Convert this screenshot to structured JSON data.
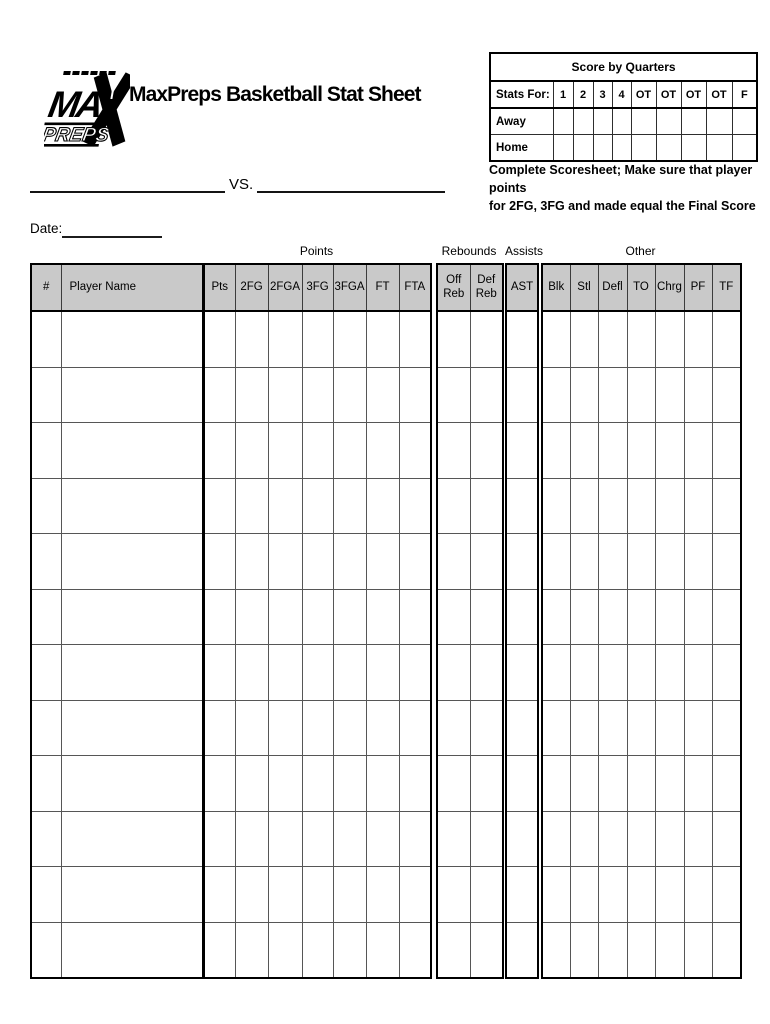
{
  "header": {
    "logo": {
      "text": "MAX",
      "subtext": "PREPS"
    },
    "title": "MaxPreps Basketball Stat Sheet"
  },
  "score_by_quarters": {
    "title": "Score by Quarters",
    "columns": [
      "Stats For:",
      "1",
      "2",
      "3",
      "4",
      "OT",
      "OT",
      "OT",
      "OT",
      "F"
    ],
    "rows": [
      "Away",
      "Home"
    ]
  },
  "matchup": {
    "vs_label": "VS."
  },
  "instructions": {
    "line1": "Complete Scoresheet; Make sure that player points",
    "line2": "for 2FG, 3FG and made equal the Final Score"
  },
  "date": {
    "label": "Date:"
  },
  "stat_table": {
    "row_count": 12,
    "blocks": [
      {
        "name": "players",
        "group_label": null,
        "columns": [
          "#",
          "Player Name"
        ]
      },
      {
        "name": "points",
        "group_label": "Points",
        "columns": [
          "Pts",
          "2FG",
          "2FGA",
          "3FG",
          "3FGA",
          "FT",
          "FTA"
        ]
      },
      {
        "name": "rebounds",
        "group_label": "Rebounds",
        "columns": [
          "Off Reb",
          "Def Reb"
        ]
      },
      {
        "name": "assists",
        "group_label": "Assists",
        "columns": [
          "AST"
        ]
      },
      {
        "name": "other",
        "group_label": "Other",
        "columns": [
          "Blk",
          "Stl",
          "Defl",
          "TO",
          "Chrg",
          "PF",
          "TF"
        ]
      }
    ]
  },
  "colors": {
    "header_fill": "#c9c9c9",
    "ink": "#000000",
    "paper": "#ffffff"
  }
}
